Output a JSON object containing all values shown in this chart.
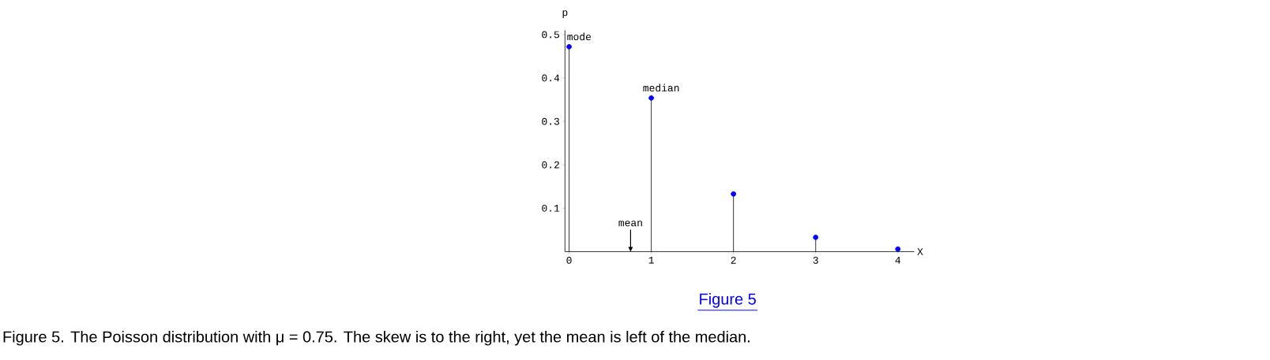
{
  "chart_data": {
    "type": "lollipop",
    "x": [
      0,
      1,
      2,
      3,
      4
    ],
    "values": [
      0.472,
      0.354,
      0.133,
      0.033,
      0.006
    ],
    "color": "#0000ff",
    "marker": "circle",
    "xlabel": "X",
    "ylabel": "p",
    "xlim": [
      -0.05,
      4.2
    ],
    "ylim": [
      0,
      0.51
    ],
    "xticks": [
      0,
      1,
      2,
      3,
      4
    ],
    "yticks": [
      0.1,
      0.2,
      0.3,
      0.4,
      0.5
    ],
    "annotations": [
      "mean",
      {
        "text": "mode",
        "x": 0,
        "y": 0.472
      },
      {
        "text": "median",
        "x": 1,
        "y": 0.354
      },
      "Figure 5",
      "Figure 5. The Poisson distribution with μ = 0.75. The skew is to the right, yet the mean is left of the median."
    ]
  }
}
